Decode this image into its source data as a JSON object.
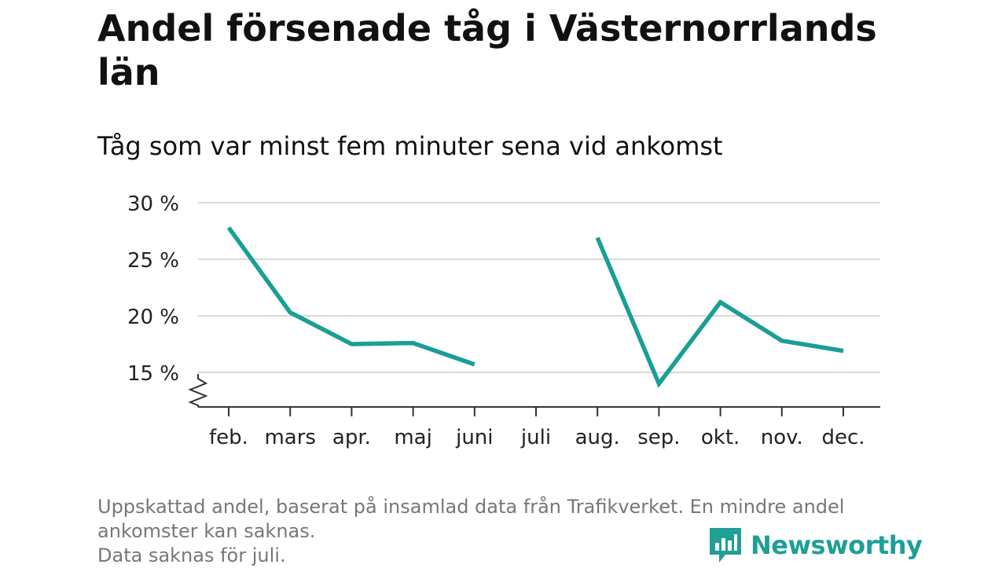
{
  "title": "Andel försenade tåg i Västernorrlands län",
  "subtitle": "Tåg som var minst fem minuter sena vid ankomst",
  "footer": {
    "note_line1": "Uppskattad andel, baserat på insamlad data från Trafikverket. En mindre andel ankomster kan saknas.",
    "note_line2": "Data saknas för juli."
  },
  "brand": {
    "name": "Newsworthy",
    "color": "#1f9f96",
    "icon": "newsworthy-logo-icon"
  },
  "chart_data": {
    "type": "line",
    "categories": [
      "feb.",
      "mars",
      "apr.",
      "maj",
      "juni",
      "juli",
      "aug.",
      "sep.",
      "okt.",
      "nov.",
      "dec."
    ],
    "series": [
      {
        "values": [
          27.8,
          20.3,
          17.5,
          17.6,
          15.7,
          null,
          26.9,
          14.0,
          21.2,
          17.8,
          16.9
        ],
        "color": "#1a9e96"
      }
    ],
    "y_ticks": [
      15,
      20,
      25,
      30
    ],
    "y_tick_labels": [
      "15 %",
      "20 %",
      "25 %",
      "30 %"
    ],
    "ylim": [
      12,
      30
    ],
    "y_axis_break": true,
    "grid": true,
    "xlabel": "",
    "ylabel": ""
  }
}
